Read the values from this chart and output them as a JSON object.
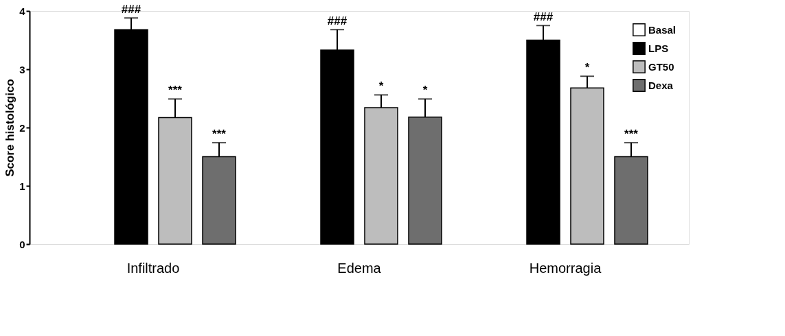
{
  "chart_data": {
    "type": "bar",
    "ylabel": "Score histológico",
    "categories": [
      "Infiltrado",
      "Edema",
      "Hemorragia"
    ],
    "series": [
      {
        "name": "Basal",
        "color": "#ffffff",
        "values": [
          null,
          null,
          null
        ]
      },
      {
        "name": "LPS",
        "color": "#000000",
        "values": [
          3.68,
          3.33,
          3.5
        ],
        "errors": [
          [
            3.68,
            3.88
          ],
          [
            3.33,
            3.68
          ],
          [
            3.5,
            3.75
          ]
        ]
      },
      {
        "name": "GT50",
        "color": "#bdbdbd",
        "values": [
          2.17,
          2.34,
          2.68
        ],
        "errors": [
          [
            2.17,
            2.49
          ],
          [
            2.34,
            2.56
          ],
          [
            2.68,
            2.88
          ]
        ]
      },
      {
        "name": "Dexa",
        "color": "#6e6e6e",
        "values": [
          1.5,
          2.18,
          1.5
        ],
        "errors": [
          [
            1.5,
            1.74
          ],
          [
            2.18,
            2.49
          ],
          [
            1.5,
            1.74
          ]
        ]
      }
    ],
    "ylim": [
      0,
      4
    ],
    "yticks": [
      0,
      1,
      2,
      3,
      4
    ],
    "grid": false,
    "legend": "top right",
    "annotations": [
      "###",
      "***",
      "***",
      "###",
      "*",
      "*",
      "###",
      "*",
      "***"
    ]
  }
}
